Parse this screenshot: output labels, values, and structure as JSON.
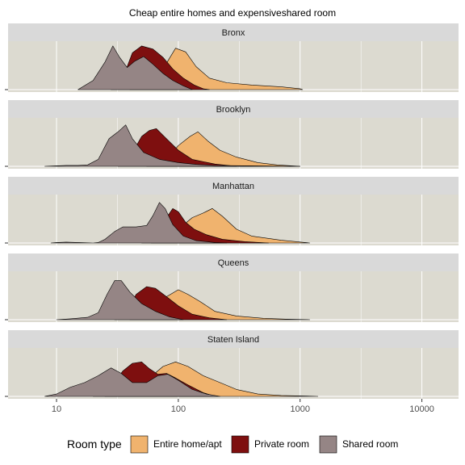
{
  "chart_data": {
    "type": "area",
    "subtype": "faceted density ridgeline",
    "title": "Cheap entire homes and expensiveshared room",
    "xlabel": "",
    "ylabel": "",
    "x_scale": "log10",
    "xlim": [
      4,
      20000
    ],
    "x_ticks": [
      10,
      100,
      1000,
      10000
    ],
    "x_tick_labels": [
      "10",
      "100",
      "1000",
      "10000"
    ],
    "grid": true,
    "legend": {
      "position": "bottom",
      "title": "Room type",
      "entries": [
        "Entire home/apt",
        "Private room",
        "Shared room"
      ]
    },
    "colors": {
      "Entire home/apt": "#f0b36e",
      "Private room": "#7e0f0f",
      "Shared room": "#958585",
      "panel_bg": "#dcdad0",
      "strip_bg": "#d9d9d9",
      "grid": "#ffffff"
    },
    "facets": [
      {
        "name": "Bronx",
        "series": [
          {
            "name": "Entire home/apt",
            "points": [
              [
                40,
                0
              ],
              [
                55,
                0.05
              ],
              [
                75,
                0.45
              ],
              [
                95,
                0.9
              ],
              [
                115,
                0.82
              ],
              [
                140,
                0.5
              ],
              [
                180,
                0.25
              ],
              [
                250,
                0.15
              ],
              [
                400,
                0.1
              ],
              [
                700,
                0.06
              ],
              [
                1000,
                0.02
              ],
              [
                1050,
                0
              ]
            ]
          },
          {
            "name": "Private room",
            "points": [
              [
                28,
                0
              ],
              [
                35,
                0.25
              ],
              [
                42,
                0.8
              ],
              [
                50,
                0.95
              ],
              [
                62,
                0.88
              ],
              [
                75,
                0.7
              ],
              [
                90,
                0.45
              ],
              [
                110,
                0.25
              ],
              [
                135,
                0.1
              ],
              [
                160,
                0.02
              ],
              [
                180,
                0
              ]
            ]
          },
          {
            "name": "Shared room",
            "points": [
              [
                15,
                0
              ],
              [
                20,
                0.2
              ],
              [
                25,
                0.6
              ],
              [
                29,
                0.95
              ],
              [
                33,
                0.7
              ],
              [
                38,
                0.48
              ],
              [
                44,
                0.62
              ],
              [
                52,
                0.72
              ],
              [
                62,
                0.55
              ],
              [
                75,
                0.35
              ],
              [
                90,
                0.2
              ],
              [
                110,
                0.08
              ],
              [
                130,
                0
              ]
            ]
          }
        ]
      },
      {
        "name": "Brooklyn",
        "series": [
          {
            "name": "Entire home/apt",
            "points": [
              [
                55,
                0
              ],
              [
                80,
                0.15
              ],
              [
                100,
                0.45
              ],
              [
                125,
                0.65
              ],
              [
                145,
                0.75
              ],
              [
                175,
                0.55
              ],
              [
                220,
                0.35
              ],
              [
                300,
                0.2
              ],
              [
                450,
                0.08
              ],
              [
                650,
                0.03
              ],
              [
                1000,
                0
              ]
            ]
          },
          {
            "name": "Private room",
            "points": [
              [
                32,
                0
              ],
              [
                40,
                0.2
              ],
              [
                50,
                0.65
              ],
              [
                58,
                0.78
              ],
              [
                66,
                0.82
              ],
              [
                80,
                0.6
              ],
              [
                100,
                0.35
              ],
              [
                130,
                0.15
              ],
              [
                200,
                0.05
              ],
              [
                300,
                0
              ]
            ]
          },
          {
            "name": "Shared room",
            "points": [
              [
                8,
                0
              ],
              [
                10,
                0.01
              ],
              [
                12,
                0.02
              ],
              [
                15,
                0.02
              ],
              [
                18,
                0.03
              ],
              [
                22,
                0.15
              ],
              [
                27,
                0.6
              ],
              [
                32,
                0.75
              ],
              [
                37,
                0.9
              ],
              [
                42,
                0.6
              ],
              [
                52,
                0.3
              ],
              [
                70,
                0.15
              ],
              [
                100,
                0.08
              ],
              [
                140,
                0.04
              ],
              [
                200,
                0.02
              ],
              [
                400,
                0.01
              ],
              [
                1000,
                0
              ]
            ]
          }
        ]
      },
      {
        "name": "Manhattan",
        "series": [
          {
            "name": "Entire home/apt",
            "points": [
              [
                60,
                0
              ],
              [
                100,
                0.3
              ],
              [
                130,
                0.55
              ],
              [
                160,
                0.65
              ],
              [
                190,
                0.75
              ],
              [
                230,
                0.58
              ],
              [
                300,
                0.3
              ],
              [
                400,
                0.15
              ],
              [
                700,
                0.06
              ],
              [
                1200,
                0
              ]
            ]
          },
          {
            "name": "Private room",
            "points": [
              [
                50,
                0
              ],
              [
                65,
                0.3
              ],
              [
                80,
                0.55
              ],
              [
                90,
                0.75
              ],
              [
                100,
                0.68
              ],
              [
                115,
                0.45
              ],
              [
                135,
                0.3
              ],
              [
                170,
                0.18
              ],
              [
                230,
                0.08
              ],
              [
                350,
                0.03
              ],
              [
                550,
                0
              ]
            ]
          },
          {
            "name": "Shared room",
            "points": [
              [
                9,
                0
              ],
              [
                10,
                0.01
              ],
              [
                12,
                0.02
              ],
              [
                20,
                0
              ],
              [
                22,
                0.01
              ],
              [
                25,
                0.08
              ],
              [
                30,
                0.25
              ],
              [
                35,
                0.35
              ],
              [
                45,
                0.35
              ],
              [
                55,
                0.38
              ],
              [
                62,
                0.6
              ],
              [
                70,
                0.88
              ],
              [
                78,
                0.75
              ],
              [
                90,
                0.4
              ],
              [
                110,
                0.15
              ],
              [
                140,
                0.05
              ],
              [
                200,
                0.01
              ],
              [
                250,
                0
              ]
            ]
          }
        ]
      },
      {
        "name": "Queens",
        "series": [
          {
            "name": "Entire home/apt",
            "points": [
              [
                40,
                0
              ],
              [
                60,
                0.25
              ],
              [
                80,
                0.5
              ],
              [
                100,
                0.65
              ],
              [
                120,
                0.55
              ],
              [
                150,
                0.4
              ],
              [
                200,
                0.18
              ],
              [
                300,
                0.08
              ],
              [
                500,
                0.03
              ],
              [
                800,
                0.01
              ],
              [
                1200,
                0
              ]
            ]
          },
          {
            "name": "Private room",
            "points": [
              [
                30,
                0
              ],
              [
                38,
                0.2
              ],
              [
                45,
                0.55
              ],
              [
                55,
                0.72
              ],
              [
                65,
                0.68
              ],
              [
                80,
                0.5
              ],
              [
                100,
                0.3
              ],
              [
                130,
                0.12
              ],
              [
                180,
                0.04
              ],
              [
                250,
                0
              ]
            ]
          },
          {
            "name": "Shared room",
            "points": [
              [
                10,
                0
              ],
              [
                13,
                0.02
              ],
              [
                18,
                0.05
              ],
              [
                22,
                0.15
              ],
              [
                26,
                0.55
              ],
              [
                30,
                0.85
              ],
              [
                34,
                0.85
              ],
              [
                40,
                0.6
              ],
              [
                50,
                0.35
              ],
              [
                65,
                0.18
              ],
              [
                85,
                0.06
              ],
              [
                110,
                0
              ]
            ]
          }
        ]
      },
      {
        "name": "Staten Island",
        "series": [
          {
            "name": "Entire home/apt",
            "points": [
              [
                25,
                0
              ],
              [
                40,
                0.1
              ],
              [
                55,
                0.35
              ],
              [
                75,
                0.65
              ],
              [
                95,
                0.75
              ],
              [
                120,
                0.65
              ],
              [
                160,
                0.45
              ],
              [
                220,
                0.3
              ],
              [
                300,
                0.15
              ],
              [
                450,
                0.05
              ],
              [
                700,
                0.02
              ],
              [
                1000,
                0.01
              ],
              [
                1400,
                0
              ]
            ]
          },
          {
            "name": "Private room",
            "points": [
              [
                20,
                0
              ],
              [
                28,
                0.2
              ],
              [
                35,
                0.55
              ],
              [
                42,
                0.72
              ],
              [
                50,
                0.75
              ],
              [
                58,
                0.6
              ],
              [
                68,
                0.48
              ],
              [
                80,
                0.5
              ],
              [
                95,
                0.4
              ],
              [
                120,
                0.25
              ],
              [
                160,
                0.08
              ],
              [
                200,
                0
              ]
            ]
          },
          {
            "name": "Shared room",
            "points": [
              [
                8,
                0
              ],
              [
                10,
                0.05
              ],
              [
                13,
                0.2
              ],
              [
                17,
                0.3
              ],
              [
                22,
                0.45
              ],
              [
                28,
                0.62
              ],
              [
                34,
                0.5
              ],
              [
                42,
                0.3
              ],
              [
                55,
                0.3
              ],
              [
                68,
                0.45
              ],
              [
                82,
                0.48
              ],
              [
                100,
                0.35
              ],
              [
                130,
                0.15
              ],
              [
                170,
                0.05
              ],
              [
                220,
                0
              ]
            ]
          }
        ]
      }
    ]
  }
}
